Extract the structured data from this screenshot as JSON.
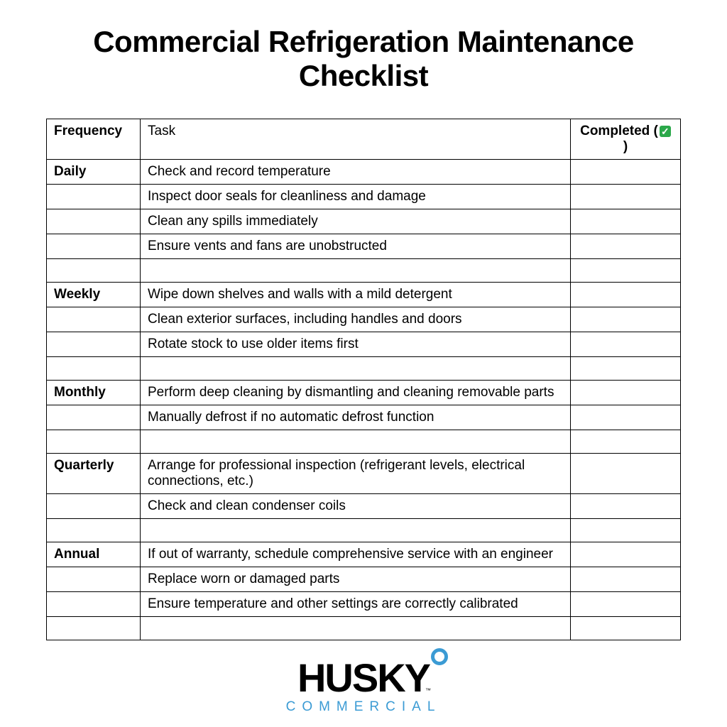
{
  "title": "Commercial Refrigeration Maintenance Checklist",
  "table": {
    "headers": {
      "frequency": "Frequency",
      "task": "Task",
      "completed_prefix": "Completed (",
      "completed_suffix": ")",
      "checkmark": "✓"
    },
    "rows": [
      {
        "frequency": "Daily",
        "task": "Check and record temperature",
        "completed": ""
      },
      {
        "frequency": "",
        "task": "Inspect door seals for cleanliness and damage",
        "completed": ""
      },
      {
        "frequency": "",
        "task": "Clean any spills immediately",
        "completed": ""
      },
      {
        "frequency": "",
        "task": "Ensure vents and fans are unobstructed",
        "completed": ""
      },
      {
        "frequency": "",
        "task": "",
        "completed": ""
      },
      {
        "frequency": "Weekly",
        "task": "Wipe down shelves and walls with a mild detergent",
        "completed": ""
      },
      {
        "frequency": "",
        "task": "Clean exterior surfaces, including handles and doors",
        "completed": ""
      },
      {
        "frequency": "",
        "task": "Rotate stock to use older items first",
        "completed": ""
      },
      {
        "frequency": "",
        "task": "",
        "completed": ""
      },
      {
        "frequency": "Monthly",
        "task": "Perform deep cleaning by dismantling and cleaning removable parts",
        "completed": ""
      },
      {
        "frequency": "",
        "task": "Manually defrost if no automatic defrost function",
        "completed": ""
      },
      {
        "frequency": "",
        "task": "",
        "completed": ""
      },
      {
        "frequency": "Quarterly",
        "task": "Arrange for professional inspection (refrigerant levels, electrical connections, etc.)",
        "completed": ""
      },
      {
        "frequency": "",
        "task": "Check and clean condenser coils",
        "completed": ""
      },
      {
        "frequency": "",
        "task": "",
        "completed": ""
      },
      {
        "frequency": "Annual",
        "task": "If out of warranty, schedule comprehensive service with an engineer",
        "completed": ""
      },
      {
        "frequency": "",
        "task": "Replace worn or damaged parts",
        "completed": ""
      },
      {
        "frequency": "",
        "task": "Ensure temperature and other settings are correctly calibrated",
        "completed": ""
      },
      {
        "frequency": "",
        "task": "",
        "completed": ""
      }
    ]
  },
  "logo": {
    "main": "HUSKY",
    "sub": "COMMERCIAL",
    "tm": "™",
    "ring_color": "#3b9bd4",
    "sub_color": "#3b9bd4",
    "main_color": "#000000"
  },
  "styling": {
    "background": "#ffffff",
    "border_color": "#000000",
    "title_color": "#000000",
    "title_fontsize": 42,
    "title_weight": 800,
    "cell_fontsize": 19,
    "header_weight": 700
  }
}
